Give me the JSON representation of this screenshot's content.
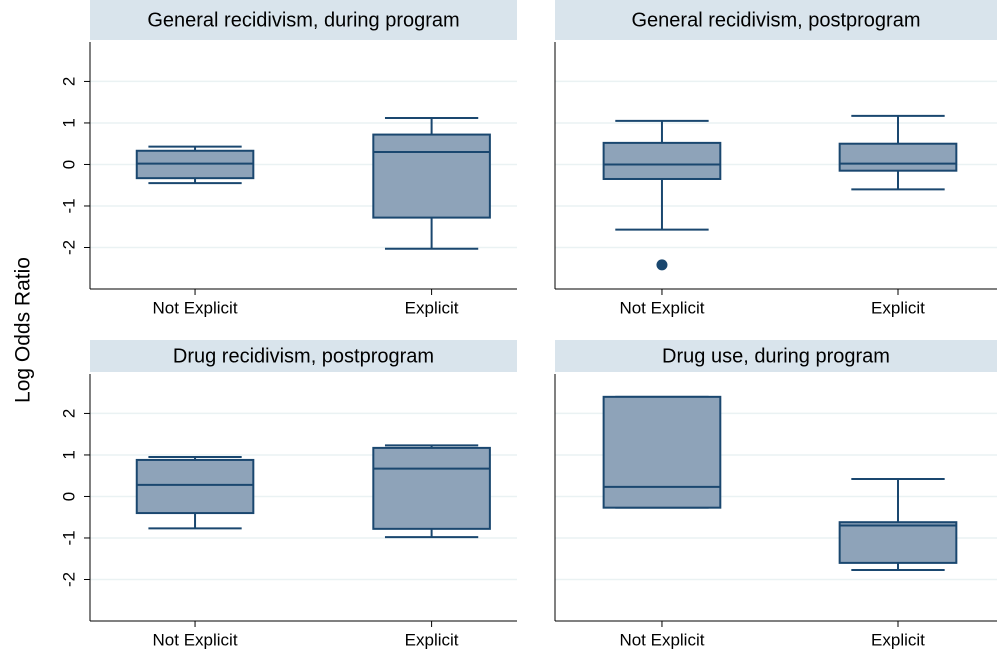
{
  "ylabel": "Log Odds Ratio",
  "chart_data": [
    {
      "type": "box",
      "title": "General recidivism, during program",
      "categories": [
        "Not Explicit",
        "Explicit"
      ],
      "boxes": [
        {
          "min": -0.45,
          "q1": -0.33,
          "median": 0.02,
          "q3": 0.33,
          "max": 0.43,
          "outliers": []
        },
        {
          "min": -2.03,
          "q1": -1.28,
          "median": 0.3,
          "q3": 0.72,
          "max": 1.12,
          "outliers": []
        }
      ],
      "color": "#8ea3b9",
      "line_color": "#1a476f",
      "ylim": [
        -3,
        2.95
      ],
      "yticks": [
        -2,
        -1,
        0,
        1,
        2
      ],
      "grid": true
    },
    {
      "type": "box",
      "title": "General recidivism, postprogram",
      "categories": [
        "Not Explicit",
        "Explicit"
      ],
      "boxes": [
        {
          "min": -1.57,
          "q1": -0.35,
          "median": 0,
          "q3": 0.52,
          "max": 1.05,
          "outliers": [
            -2.42
          ]
        },
        {
          "min": -0.6,
          "q1": -0.15,
          "median": 0.02,
          "q3": 0.5,
          "max": 1.17,
          "outliers": []
        }
      ],
      "color": "#8ea3b9",
      "line_color": "#1a476f",
      "ylim": [
        -3,
        2.95
      ],
      "yticks": [
        -2,
        -1,
        0,
        1,
        2
      ],
      "grid": true
    },
    {
      "type": "box",
      "title": "Drug recidivism, postprogram",
      "categories": [
        "Not Explicit",
        "Explicit"
      ],
      "boxes": [
        {
          "min": -0.77,
          "q1": -0.4,
          "median": 0.28,
          "q3": 0.88,
          "max": 0.95,
          "outliers": []
        },
        {
          "min": -0.98,
          "q1": -0.78,
          "median": 0.67,
          "q3": 1.17,
          "max": 1.23,
          "outliers": []
        }
      ],
      "color": "#8ea3b9",
      "line_color": "#1a476f",
      "ylim": [
        -3,
        2.95
      ],
      "yticks": [
        -2,
        -1,
        0,
        1,
        2
      ],
      "grid": true
    },
    {
      "type": "box",
      "title": "Drug use, during program",
      "categories": [
        "Not Explicit",
        "Explicit"
      ],
      "boxes": [
        {
          "min": -0.27,
          "q1": -0.27,
          "median": 0.23,
          "q3": 2.4,
          "max": 2.4,
          "outliers": []
        },
        {
          "min": -1.77,
          "q1": -1.6,
          "median": -0.7,
          "q3": -0.62,
          "max": 0.42,
          "outliers": []
        }
      ],
      "color": "#8ea3b9",
      "line_color": "#1a476f",
      "ylim": [
        -3,
        2.95
      ],
      "yticks": [
        -2,
        -1,
        0,
        1,
        2
      ],
      "grid": true
    }
  ]
}
